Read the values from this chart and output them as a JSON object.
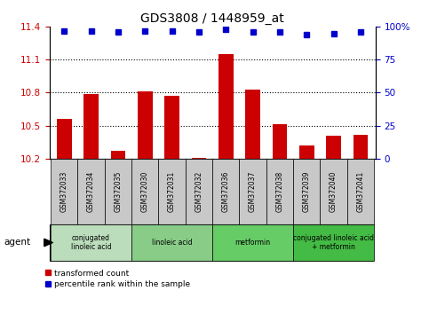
{
  "title": "GDS3808 / 1448959_at",
  "categories": [
    "GSM372033",
    "GSM372034",
    "GSM372035",
    "GSM372030",
    "GSM372031",
    "GSM372032",
    "GSM372036",
    "GSM372037",
    "GSM372038",
    "GSM372039",
    "GSM372040",
    "GSM372041"
  ],
  "bar_values": [
    10.56,
    10.79,
    10.27,
    10.81,
    10.77,
    10.21,
    11.15,
    10.83,
    10.51,
    10.32,
    10.41,
    10.42
  ],
  "percentile_values": [
    97,
    97,
    96,
    97,
    97,
    96,
    98,
    96,
    96,
    94,
    95,
    96
  ],
  "bar_color": "#cc0000",
  "percentile_color": "#0000cc",
  "ylim_left": [
    10.2,
    11.4
  ],
  "ylim_right": [
    0,
    100
  ],
  "yticks_left": [
    10.2,
    10.5,
    10.8,
    11.1,
    11.4
  ],
  "yticks_right": [
    0,
    25,
    50,
    75,
    100
  ],
  "ytick_labels_left": [
    "10.2",
    "10.5",
    "10.8",
    "11.1",
    "11.4"
  ],
  "ytick_labels_right": [
    "0",
    "25",
    "50",
    "75",
    "100%"
  ],
  "grid_values": [
    10.5,
    10.8,
    11.1
  ],
  "agent_groups": [
    {
      "label": "conjugated\nlinoleic acid",
      "start": 0,
      "end": 3,
      "color": "#bbddbb"
    },
    {
      "label": "linoleic acid",
      "start": 3,
      "end": 6,
      "color": "#88cc88"
    },
    {
      "label": "metformin",
      "start": 6,
      "end": 9,
      "color": "#66cc66"
    },
    {
      "label": "conjugated linoleic acid\n+ metformin",
      "start": 9,
      "end": 12,
      "color": "#44bb44"
    }
  ],
  "legend_items": [
    {
      "label": "transformed count",
      "color": "#cc0000"
    },
    {
      "label": "percentile rank within the sample",
      "color": "#0000cc"
    }
  ],
  "agent_label": "agent",
  "bg_plot": "#ffffff",
  "title_fontsize": 10,
  "tick_fontsize": 7.5,
  "bar_width": 0.55
}
